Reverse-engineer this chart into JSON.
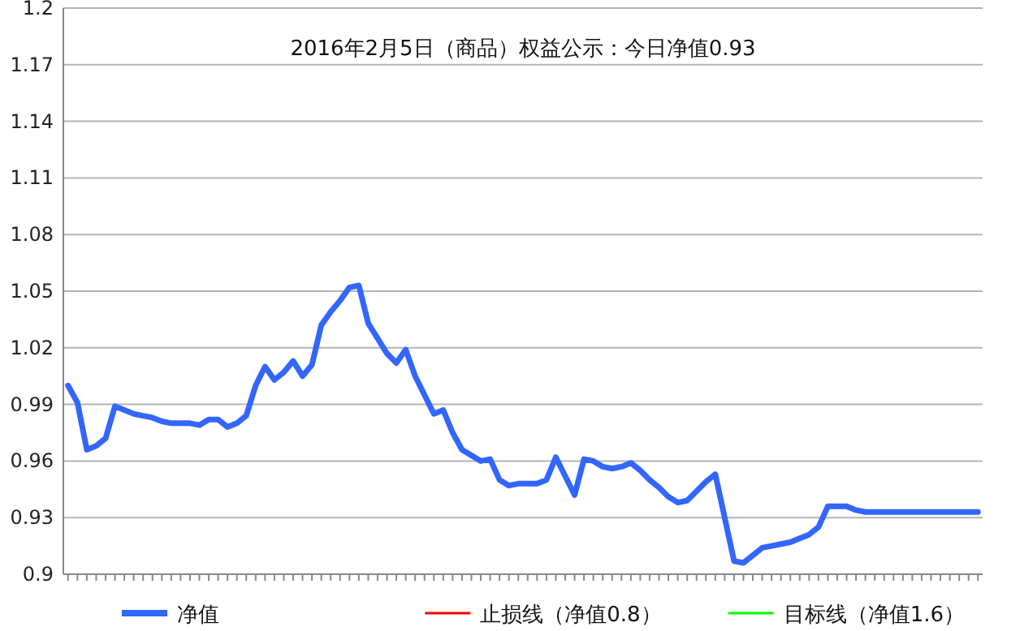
{
  "chart_data": {
    "type": "line",
    "title": "2016年2月5日（商品）权益公示：今日净值0.93",
    "categories": [
      null,
      null,
      null,
      null,
      null,
      null,
      null,
      null,
      null,
      null,
      null,
      null,
      null,
      null,
      null,
      null,
      null,
      null,
      null,
      null,
      null,
      null,
      null,
      null,
      null,
      null,
      null,
      null,
      null,
      null,
      null,
      null,
      null,
      null,
      null,
      null,
      null,
      null,
      null,
      null,
      null,
      null,
      null,
      null,
      null,
      null,
      null,
      null,
      null,
      null,
      null,
      null,
      null,
      null,
      null,
      null,
      null,
      null,
      null,
      null,
      null,
      null,
      null,
      null,
      null,
      null,
      null,
      null,
      null,
      null,
      null,
      null,
      null,
      null,
      null,
      null,
      null,
      null,
      null,
      null,
      null,
      null,
      null,
      null,
      null,
      null,
      null,
      null,
      null,
      null,
      null,
      null,
      null,
      null,
      null,
      null,
      null,
      null
    ],
    "series": [
      {
        "name": "净值",
        "color": "#3366ff",
        "values": [
          1.0,
          0.991,
          0.966,
          0.968,
          0.972,
          0.989,
          0.987,
          0.985,
          0.984,
          0.983,
          0.981,
          0.98,
          0.98,
          0.98,
          0.979,
          0.982,
          0.982,
          0.978,
          0.98,
          0.984,
          1.0,
          1.01,
          1.003,
          1.007,
          1.013,
          1.005,
          1.011,
          1.032,
          1.039,
          1.045,
          1.052,
          1.053,
          1.033,
          1.025,
          1.017,
          1.012,
          1.019,
          1.005,
          0.995,
          0.985,
          0.987,
          0.975,
          0.966,
          0.963,
          0.96,
          0.961,
          0.95,
          0.947,
          0.948,
          0.948,
          0.948,
          0.95,
          0.962,
          0.952,
          0.942,
          0.961,
          0.96,
          0.957,
          0.956,
          0.957,
          0.959,
          0.955,
          0.95,
          0.946,
          0.941,
          0.938,
          0.939,
          0.944,
          0.949,
          0.953,
          0.93,
          0.907,
          0.906,
          0.91,
          0.914,
          0.915,
          0.916,
          0.917,
          0.919,
          0.921,
          0.925,
          0.936,
          0.936,
          0.936,
          0.934,
          0.933,
          0.933,
          0.933,
          0.933,
          0.933,
          0.933,
          0.933,
          0.933,
          0.933,
          0.933,
          0.933,
          0.933,
          0.933
        ]
      },
      {
        "name": "止损线（净值0.8）",
        "color": "#ff0000",
        "values": [
          null,
          null,
          null,
          null,
          null,
          null,
          null,
          null,
          null,
          null,
          null,
          null,
          null,
          null,
          null,
          null,
          null,
          null,
          null,
          null,
          null,
          null,
          null,
          null,
          null,
          null,
          null,
          null,
          null,
          null,
          null,
          null,
          null,
          null,
          null,
          null,
          null,
          null,
          null,
          null,
          null,
          null,
          null,
          null,
          null,
          null,
          null,
          null,
          null,
          null,
          null,
          null,
          null,
          null,
          null,
          null,
          null,
          null,
          null,
          null,
          null,
          null,
          null,
          null,
          null,
          null,
          null,
          null,
          null,
          null,
          null,
          null,
          null,
          null,
          null,
          null,
          null,
          null,
          null,
          null,
          null,
          null,
          null,
          null,
          null,
          null,
          null,
          null,
          null,
          null,
          null,
          null,
          null,
          null,
          null,
          null,
          null,
          null
        ]
      },
      {
        "name": "目标线（净值1.6）",
        "color": "#00ff00",
        "values": [
          null,
          null,
          null,
          null,
          null,
          null,
          null,
          null,
          null,
          null,
          null,
          null,
          null,
          null,
          null,
          null,
          null,
          null,
          null,
          null,
          null,
          null,
          null,
          null,
          null,
          null,
          null,
          null,
          null,
          null,
          null,
          null,
          null,
          null,
          null,
          null,
          null,
          null,
          null,
          null,
          null,
          null,
          null,
          null,
          null,
          null,
          null,
          null,
          null,
          null,
          null,
          null,
          null,
          null,
          null,
          null,
          null,
          null,
          null,
          null,
          null,
          null,
          null,
          null,
          null,
          null,
          null,
          null,
          null,
          null,
          null,
          null,
          null,
          null,
          null,
          null,
          null,
          null,
          null,
          null,
          null,
          null,
          null,
          null,
          null,
          null,
          null,
          null,
          null,
          null,
          null,
          null,
          null,
          null,
          null,
          null,
          null,
          null
        ]
      }
    ],
    "ylim": [
      0.9,
      1.2
    ],
    "yticks": [
      0.9,
      0.93,
      0.96,
      0.99,
      1.02,
      1.05,
      1.08,
      1.11,
      1.14,
      1.17,
      1.2
    ],
    "grid": "y",
    "legend": "bottom",
    "marker": "none",
    "line_style": "solid",
    "tick_labels": "y"
  }
}
